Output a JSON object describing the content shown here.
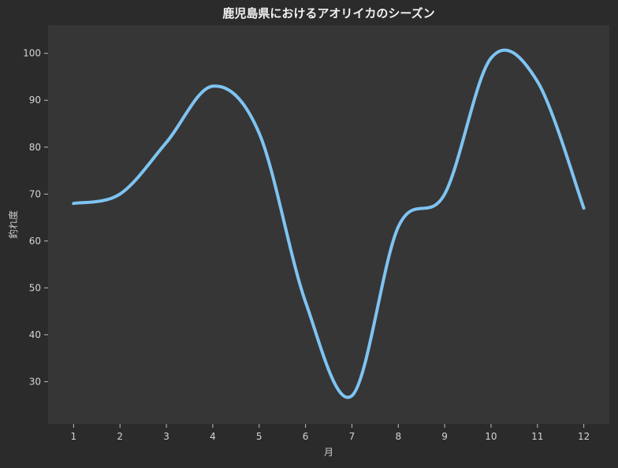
{
  "chart_data": {
    "type": "line",
    "title": "鹿児島県におけるアオリイカのシーズン",
    "xlabel": "月",
    "ylabel": "釣れ度",
    "x": [
      1,
      2,
      3,
      4,
      5,
      6,
      7,
      8,
      9,
      10,
      11,
      12
    ],
    "series": [
      {
        "values": [
          68,
          70,
          81,
          93,
          83,
          47,
          27,
          63,
          70,
          99,
          94,
          67
        ]
      }
    ],
    "xticks": [
      "1",
      "2",
      "3",
      "4",
      "5",
      "6",
      "7",
      "8",
      "9",
      "10",
      "11",
      "12"
    ],
    "yticks": [
      30,
      40,
      50,
      60,
      70,
      80,
      90,
      100
    ],
    "xlim": [
      0.45,
      12.55
    ],
    "ylim": [
      21,
      106
    ],
    "grid": false,
    "legend": "none",
    "colors": {
      "background": "#2b2b2b",
      "plot_background": "#363636",
      "line": "#7ec4f2",
      "text": "#d4d4d4"
    }
  }
}
